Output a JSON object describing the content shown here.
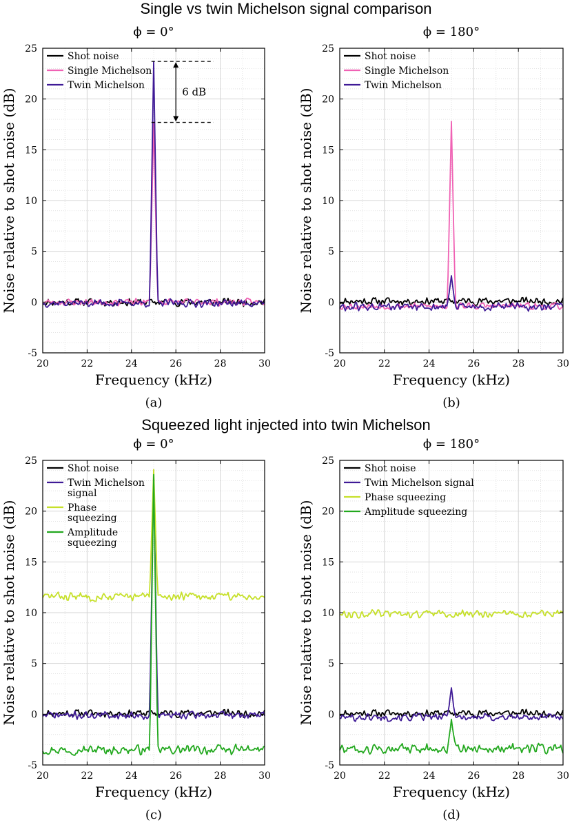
{
  "section_titles": [
    "Single vs twin Michelson signal comparison",
    "Squeezed light injected into twin Michelson"
  ],
  "colors": {
    "shot": "#000000",
    "single": "#f062b4",
    "twin": "#3f1a96",
    "phase": "#c6e02a",
    "amplitude": "#22a81e",
    "grid": "#d4d4d4",
    "axis": "#000000"
  },
  "chart_data": [
    {
      "type": "line",
      "title": "ϕ = 0°",
      "caption": "(a)",
      "xlabel": "Frequency (kHz)",
      "ylabel": "Noise relative to shot noise (dB)",
      "xlim": [
        20,
        30
      ],
      "ylim": [
        -5,
        25
      ],
      "xticks": [
        "20",
        "22",
        "24",
        "26",
        "28",
        "30"
      ],
      "yticks": [
        "-5",
        "0",
        "5",
        "10",
        "15",
        "20",
        "25"
      ],
      "grid": true,
      "legend_position": "top-left",
      "annotation": {
        "text": "6 dB",
        "from": 23.7,
        "to": 17.7,
        "x": 26.0
      },
      "series": [
        {
          "name": "Shot noise",
          "color": "#000000",
          "baseline": 0.0,
          "amp": 0.45,
          "seed": 11,
          "peak": null
        },
        {
          "name": "Single Michelson",
          "color": "#f062b4",
          "baseline": 0.0,
          "amp": 0.4,
          "seed": 23,
          "peak": 17.7
        },
        {
          "name": "Twin Michelson",
          "color": "#3f1a96",
          "baseline": -0.1,
          "amp": 0.45,
          "seed": 37,
          "peak": 23.7
        }
      ]
    },
    {
      "type": "line",
      "title": "ϕ = 180°",
      "caption": "(b)",
      "xlabel": "Frequency (kHz)",
      "ylabel": "Noise relative to shot noise (dB)",
      "xlim": [
        20,
        30
      ],
      "ylim": [
        -5,
        25
      ],
      "xticks": [
        "20",
        "22",
        "24",
        "26",
        "28",
        "30"
      ],
      "yticks": [
        "-5",
        "0",
        "5",
        "10",
        "15",
        "20",
        "25"
      ],
      "grid": true,
      "legend_position": "top-left",
      "series": [
        {
          "name": "Shot noise",
          "color": "#000000",
          "baseline": 0.1,
          "amp": 0.45,
          "seed": 11,
          "peak": null
        },
        {
          "name": "Single Michelson",
          "color": "#f062b4",
          "baseline": -0.4,
          "amp": 0.4,
          "seed": 53,
          "peak": 17.8
        },
        {
          "name": "Twin Michelson",
          "color": "#3f1a96",
          "baseline": -0.5,
          "amp": 0.5,
          "seed": 61,
          "peak": 2.6
        }
      ]
    },
    {
      "type": "line",
      "title": "ϕ = 0°",
      "caption": "(c)",
      "xlabel": "Frequency (kHz)",
      "ylabel": "Noise relative to shot noise (dB)",
      "xlim": [
        20,
        30
      ],
      "ylim": [
        -5,
        25
      ],
      "xticks": [
        "20",
        "22",
        "24",
        "26",
        "28",
        "30"
      ],
      "yticks": [
        "-5",
        "0",
        "5",
        "10",
        "15",
        "20",
        "25"
      ],
      "grid": true,
      "legend_position": "top-left",
      "series": [
        {
          "name": "Shot noise",
          "color": "#000000",
          "baseline": 0.1,
          "amp": 0.45,
          "seed": 11,
          "peak": null
        },
        {
          "name": "Twin Michelson signal",
          "label_lines": [
            "Twin Michelson",
            "signal"
          ],
          "color": "#3f1a96",
          "baseline": -0.1,
          "amp": 0.45,
          "seed": 71,
          "peak": 23.8
        },
        {
          "name": "Phase squeezing",
          "label_lines": [
            "Phase",
            "squeezing"
          ],
          "color": "#c6e02a",
          "baseline": 11.6,
          "amp": 0.5,
          "seed": 83,
          "peak": 24.1
        },
        {
          "name": "Amplitude squeezing",
          "label_lines": [
            "Amplitude",
            "squeezing"
          ],
          "color": "#22a81e",
          "baseline": -3.5,
          "amp": 0.55,
          "seed": 97,
          "peak": 23.6
        }
      ]
    },
    {
      "type": "line",
      "title": "ϕ = 180°",
      "caption": "(d)",
      "xlabel": "Frequency (kHz)",
      "ylabel": "Noise relative to shot noise (dB)",
      "xlim": [
        20,
        30
      ],
      "ylim": [
        -5,
        25
      ],
      "xticks": [
        "20",
        "22",
        "24",
        "26",
        "28",
        "30"
      ],
      "yticks": [
        "-5",
        "0",
        "5",
        "10",
        "15",
        "20",
        "25"
      ],
      "grid": true,
      "legend_position": "top-left",
      "series": [
        {
          "name": "Shot noise",
          "color": "#000000",
          "baseline": 0.1,
          "amp": 0.45,
          "seed": 11,
          "peak": null
        },
        {
          "name": "Twin Michelson signal",
          "color": "#3f1a96",
          "baseline": -0.3,
          "amp": 0.45,
          "seed": 101,
          "peak": 2.6
        },
        {
          "name": "Phase squeezing",
          "color": "#c6e02a",
          "baseline": 9.9,
          "amp": 0.45,
          "seed": 113,
          "peak": null
        },
        {
          "name": "Amplitude squeezing",
          "color": "#22a81e",
          "baseline": -3.4,
          "amp": 0.6,
          "seed": 127,
          "peak": -0.5
        }
      ]
    }
  ]
}
